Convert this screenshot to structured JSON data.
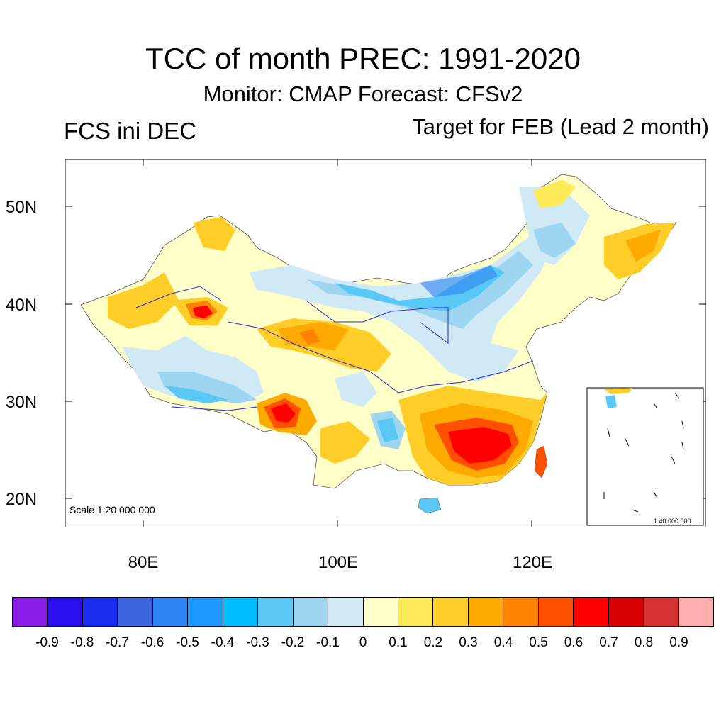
{
  "header": {
    "title": "TCC of month PREC: 1991-2020",
    "subtitle": "Monitor: CMAP   Forecast: CFSv2",
    "left_label": "FCS ini DEC",
    "right_label": "Target for FEB (Lead 2 month)"
  },
  "map": {
    "lat_labels": [
      "50N",
      "40N",
      "30N",
      "20N"
    ],
    "lon_labels": [
      "80E",
      "100E",
      "120E"
    ],
    "scale_label": "Scale 1:20 000 000",
    "inset_scale_label": "1:40 000 000",
    "description_regions": [
      "Southeast China high positive",
      "Northwest China mixed",
      "North China negative",
      "Northeast China positive"
    ]
  },
  "colorbar": {
    "colors": [
      "#8a1ee6",
      "#2a0ef0",
      "#1a2ef2",
      "#3c66e0",
      "#2c82f0",
      "#1e96ff",
      "#00bcff",
      "#5ac8f5",
      "#9ed6f2",
      "#cfe9f7",
      "#ffffc8",
      "#ffeb5a",
      "#ffcd28",
      "#ffaa00",
      "#ff8200",
      "#ff5000",
      "#ff0000",
      "#d80000",
      "#d73232",
      "#ffadad"
    ],
    "labels": [
      "-0.9",
      "-0.8",
      "-0.7",
      "-0.6",
      "-0.5",
      "-0.4",
      "-0.3",
      "-0.2",
      "-0.1",
      "0",
      "0.1",
      "0.2",
      "0.3",
      "0.4",
      "0.5",
      "0.6",
      "0.7",
      "0.8",
      "0.9"
    ]
  }
}
